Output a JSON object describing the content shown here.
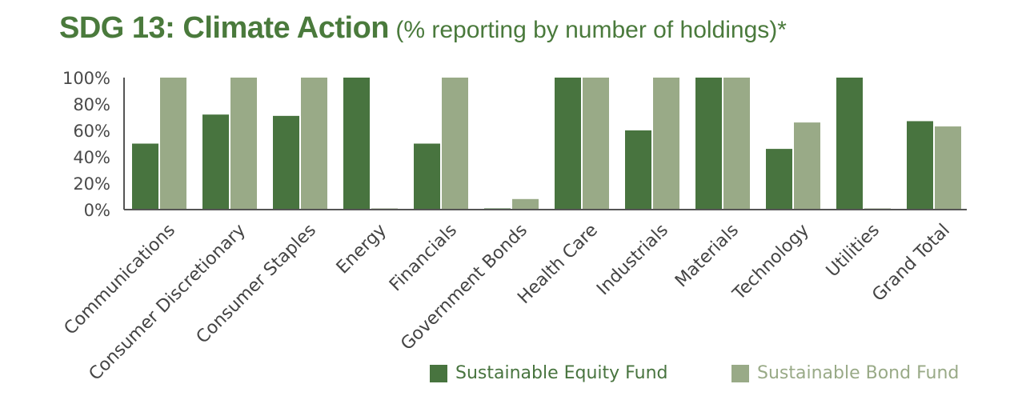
{
  "title": {
    "main": "SDG 13: Climate Action",
    "sub": " (% reporting by number of holdings)*"
  },
  "colors": {
    "title": "#4a7a3c",
    "equity": "#48743f",
    "bond": "#99aa87",
    "axis": "#555555"
  },
  "chart_data": {
    "type": "bar",
    "categories": [
      "Communications",
      "Consumer Discretionary",
      "Consumer Staples",
      "Energy",
      "Financials",
      "Government Bonds",
      "Health Care",
      "Industrials",
      "Materials",
      "Technology",
      "Utilities",
      "Grand Total"
    ],
    "series": [
      {
        "name": "Sustainable Equity Fund",
        "values": [
          50,
          72,
          71,
          100,
          50,
          0,
          100,
          60,
          100,
          46,
          100,
          67
        ]
      },
      {
        "name": "Sustainable Bond Fund",
        "values": [
          100,
          100,
          100,
          0,
          100,
          8,
          100,
          100,
          100,
          66,
          0,
          63
        ]
      }
    ],
    "yticks": [
      "100%",
      "80%",
      "60%",
      "40%",
      "20%",
      "0%"
    ],
    "ylim": [
      0,
      100
    ],
    "grid": false,
    "legend": "bottom-right"
  }
}
